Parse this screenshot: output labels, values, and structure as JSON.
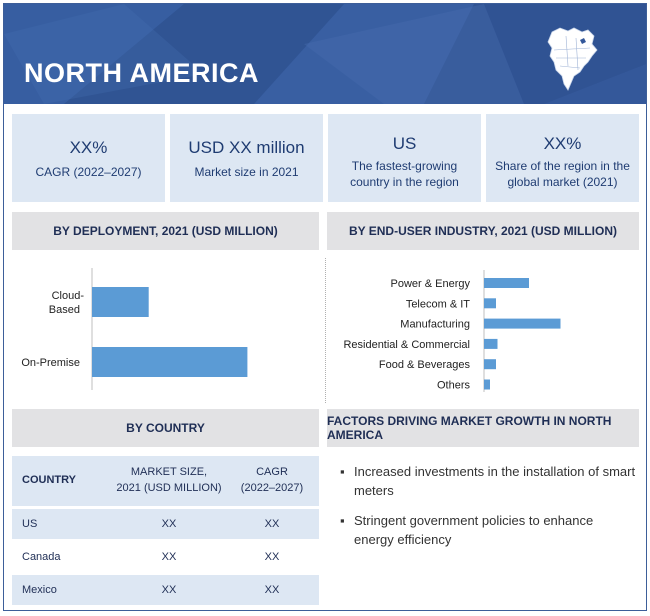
{
  "header": {
    "title": "NORTH AMERICA"
  },
  "kpis": [
    {
      "big": "XX%",
      "small": "CAGR (2022–2027)"
    },
    {
      "big": "USD XX million",
      "small": "Market size in 2021"
    },
    {
      "big": "US",
      "small": "The fastest-growing country in the region"
    },
    {
      "big": "XX%",
      "small": "Share of the region in the global market (2021)"
    }
  ],
  "sections": {
    "deployment": "BY  DEPLOYMENT, 2021 (USD MILLION)",
    "end_user": "BY  END-USER INDUSTRY, 2021 (USD MILLION)",
    "country": "BY COUNTRY",
    "factors": "FACTORS DRIVING MARKET GROWTH IN NORTH AMERICA"
  },
  "chart_data": [
    {
      "type": "bar",
      "orientation": "horizontal",
      "title": "BY  DEPLOYMENT, 2021 (USD MILLION)",
      "categories": [
        "Cloud-Based",
        "On-Premise"
      ],
      "values": [
        27,
        74
      ],
      "xlim": [
        0,
        100
      ],
      "grid": false,
      "bar_color": "#5b9bd5"
    },
    {
      "type": "bar",
      "orientation": "horizontal",
      "title": "BY  END-USER INDUSTRY, 2021 (USD MILLION)",
      "categories": [
        "Power & Energy",
        "Telecom & IT",
        "Manufacturing",
        "Residential & Commercial",
        "Food & Beverages",
        "Others"
      ],
      "values": [
        30,
        8,
        51,
        9,
        8,
        4
      ],
      "xlim": [
        0,
        100
      ],
      "grid": false,
      "bar_color": "#5b9bd5"
    }
  ],
  "country_table": {
    "headers": [
      [
        "COUNTRY"
      ],
      [
        "MARKET SIZE,",
        "2021 (USD MILLION)"
      ],
      [
        "CAGR",
        "(2022–2027)"
      ]
    ],
    "rows": [
      [
        "US",
        "XX",
        "XX"
      ],
      [
        "Canada",
        "XX",
        "XX"
      ],
      [
        "Mexico",
        "XX",
        "XX"
      ]
    ]
  },
  "factors": [
    "Increased investments in the installation of smart meters",
    "Stringent government policies to enhance energy efficiency"
  ],
  "colors": {
    "header_bg": "#34589a",
    "kpi_bg": "#dde7f3",
    "section_bg": "#e2e2e4",
    "bar": "#5b9bd5",
    "text_dark": "#1f2e55"
  }
}
